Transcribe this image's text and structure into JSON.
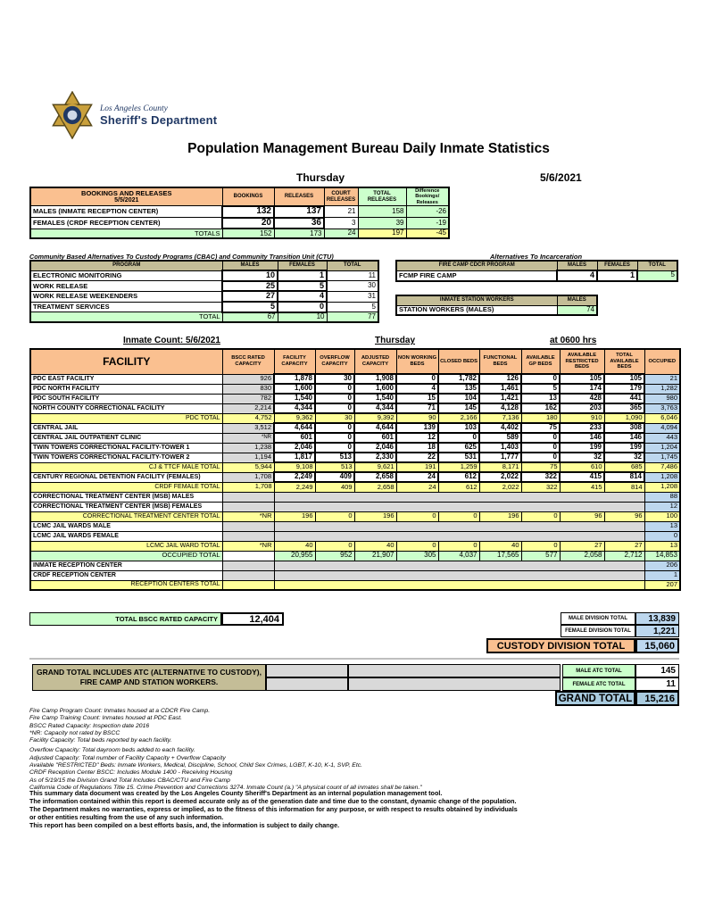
{
  "page": {
    "logo_county": "Los Angeles County",
    "logo_dept": "Sheriff's Department",
    "title": "Population Management Bureau Daily Inmate Statistics",
    "day": "Thursday",
    "date": "5/6/2021"
  },
  "colors": {
    "header_orange": "#FAC090",
    "light_green": "#CCFFCC",
    "total_yellow": "#FFFF99",
    "occupied_blue": "#BDD7EE",
    "tan": "#C4BD97",
    "gray": "#D9D9D9",
    "grand_blue": "#A9CBDF"
  },
  "bookings": {
    "header": {
      "title": "BOOKINGS AND RELEASES",
      "date": "5/5/2021",
      "cols": [
        "BOOKINGS",
        "RELEASES",
        "COURT RELEASES",
        "TOTAL RELEASES",
        "Difference Bookings/ Releases"
      ]
    },
    "rows": [
      {
        "label": "MALES (INMATE RECEPTION CENTER)",
        "values": [
          "132",
          "137",
          "21",
          "158",
          "-26"
        ]
      },
      {
        "label": "FEMALES (CRDF RECEPTION CENTER)",
        "values": [
          "20",
          "36",
          "3",
          "39",
          "-19"
        ]
      }
    ],
    "totals": {
      "label": "TOTALS",
      "values": [
        "152",
        "173",
        "24",
        "197",
        "-45"
      ]
    }
  },
  "cbac": {
    "title": "Community Based Alternatives To Custody Programs (CBAC) and Community Transition Unit (CTU)",
    "cols": [
      "PROGRAM",
      "MALES",
      "FEMALES",
      "TOTAL"
    ],
    "rows": [
      {
        "label": "ELECTRONIC MONITORING",
        "values": [
          "10",
          "1",
          "11"
        ]
      },
      {
        "label": "WORK RELEASE",
        "values": [
          "25",
          "5",
          "30"
        ]
      },
      {
        "label": "WORK RELEASE WEEKENDERS",
        "values": [
          "27",
          "4",
          "31"
        ]
      },
      {
        "label": "TREATMENT SERVICES",
        "values": [
          "5",
          "0",
          "5"
        ]
      }
    ],
    "totals": {
      "label": "TOTAL",
      "values": [
        "67",
        "10",
        "77"
      ]
    }
  },
  "ati": {
    "title": "Alternatives To Incarceration",
    "fire_camp": {
      "cols": [
        "FIRE CAMP CDCR PROGRAM",
        "MALES",
        "FEMALES",
        "TOTAL"
      ],
      "row": {
        "label": "FCMP FIRE CAMP",
        "values": [
          "4",
          "1",
          "5"
        ]
      }
    },
    "station_workers": {
      "cols": [
        "INMATE STATION WORKERS",
        "MALES"
      ],
      "row": {
        "label": "STATION WORKERS (MALES)",
        "value": "74"
      }
    }
  },
  "inmate_count": {
    "label": "Inmate Count: 5/6/2021",
    "day": "Thursday",
    "time": "at 0600 hrs"
  },
  "facility_table": {
    "header": [
      "FACILITY",
      "BSCC RATED CAPACITY",
      "FACILITY CAPACITY",
      "OVERFLOW CAPACITY",
      "ADJUSTED CAPACITY",
      "NON WORKING BEDS",
      "CLOSED BEDS",
      "FUNCTIONAL BEDS",
      "AVAILABLE GP BEDS",
      "AVAILABLE RESTRICTED BEDS",
      "TOTAL AVAILABLE BEDS",
      "OCCUPIED"
    ],
    "rows": [
      {
        "type": "facility",
        "label": "PDC EAST FACILITY",
        "bscc": "926",
        "vals": [
          "1,878",
          "30",
          "1,908",
          "0",
          "1,782",
          "126",
          "0",
          "105",
          "105"
        ],
        "occ": "21"
      },
      {
        "type": "facility",
        "label": "PDC NORTH FACILITY",
        "bscc": "830",
        "vals": [
          "1,600",
          "0",
          "1,600",
          "4",
          "135",
          "1,461",
          "5",
          "174",
          "179"
        ],
        "occ": "1,282"
      },
      {
        "type": "facility",
        "label": "PDC SOUTH FACILITY",
        "bscc": "782",
        "vals": [
          "1,540",
          "0",
          "1,540",
          "15",
          "104",
          "1,421",
          "13",
          "428",
          "441"
        ],
        "occ": "980"
      },
      {
        "type": "facility",
        "label": "NORTH COUNTY CORRECTIONAL FACILITY",
        "bscc": "2,214",
        "vals": [
          "4,344",
          "0",
          "4,344",
          "71",
          "145",
          "4,128",
          "162",
          "203",
          "365"
        ],
        "occ": "3,763"
      },
      {
        "type": "total",
        "label": "PDC TOTAL",
        "bscc": "4,752",
        "vals": [
          "9,362",
          "30",
          "9,392",
          "90",
          "2,166",
          "7,136",
          "180",
          "910",
          "1,090"
        ],
        "occ": "6,046"
      },
      {
        "type": "facility",
        "label": "CENTRAL JAIL",
        "bscc": "3,512",
        "vals": [
          "4,644",
          "0",
          "4,644",
          "139",
          "103",
          "4,402",
          "75",
          "233",
          "308"
        ],
        "occ": "4,094"
      },
      {
        "type": "facility",
        "label": "CENTRAL JAIL OUTPATIENT CLINIC",
        "bscc": "*NR",
        "vals": [
          "601",
          "0",
          "601",
          "12",
          "0",
          "589",
          "0",
          "146",
          "146"
        ],
        "occ": "443"
      },
      {
        "type": "facility",
        "label": "TWIN TOWERS CORRECTIONAL FACILITY-TOWER 1",
        "bscc": "1,238",
        "vals": [
          "2,046",
          "0",
          "2,046",
          "18",
          "625",
          "1,403",
          "0",
          "199",
          "199"
        ],
        "occ": "1,204"
      },
      {
        "type": "facility",
        "label": "TWIN TOWERS CORRECTIONAL FACILITY-TOWER 2",
        "bscc": "1,194",
        "vals": [
          "1,817",
          "513",
          "2,330",
          "22",
          "531",
          "1,777",
          "0",
          "32",
          "32"
        ],
        "occ": "1,745"
      },
      {
        "type": "total",
        "label": "CJ & TTCF MALE TOTAL",
        "bscc": "5,944",
        "vals": [
          "9,108",
          "513",
          "9,621",
          "191",
          "1,259",
          "8,171",
          "75",
          "610",
          "685"
        ],
        "occ": "7,486"
      },
      {
        "type": "facility",
        "label": "CENTURY REGIONAL DETENTION FACILITY (FEMALES)",
        "bscc": "1,708",
        "vals": [
          "2,249",
          "409",
          "2,658",
          "24",
          "612",
          "2,022",
          "322",
          "415",
          "814"
        ],
        "occ": "1,208"
      },
      {
        "type": "total",
        "label": "CRDF FEMALE TOTAL",
        "bscc": "1,708",
        "vals": [
          "2,249",
          "409",
          "2,658",
          "24",
          "612",
          "2,022",
          "322",
          "415",
          "814"
        ],
        "occ": "1,208"
      },
      {
        "type": "span",
        "label": "CORRECTIONAL TREATMENT CENTER (MSB) MALES",
        "bscc": "",
        "occ": "88"
      },
      {
        "type": "span",
        "label": "CORRECTIONAL TREATMENT CENTER (MSB) FEMALES",
        "bscc": "",
        "occ": "12"
      },
      {
        "type": "total",
        "label": "CORRECTIONAL TREATMENT CENTER TOTAL",
        "bscc": "*NR",
        "vals": [
          "196",
          "0",
          "196",
          "0",
          "0",
          "196",
          "0",
          "96",
          "96"
        ],
        "occ": "100"
      },
      {
        "type": "span",
        "label": "LCMC JAIL WARDS MALE",
        "bscc": "",
        "occ": "13"
      },
      {
        "type": "span",
        "label": "LCMC JAIL WARDS FEMALE",
        "bscc": "",
        "occ": "0"
      },
      {
        "type": "total",
        "label": "LCMC JAIL WARD TOTAL",
        "bscc": "*NR",
        "vals": [
          "40",
          "0",
          "40",
          "0",
          "0",
          "40",
          "0",
          "27",
          "27"
        ],
        "occ": "13"
      },
      {
        "type": "occtotal",
        "label": "OCCUPIED TOTAL",
        "bscc": "",
        "vals": [
          "20,955",
          "952",
          "21,907",
          "305",
          "4,037",
          "17,565",
          "577",
          "2,058",
          "2,712"
        ],
        "occ": "14,853"
      },
      {
        "type": "span",
        "label": "INMATE RECEPTION CENTER",
        "bscc": "",
        "occ": "206"
      },
      {
        "type": "span",
        "label": "CRDF RECEPTION CENTER",
        "bscc": "",
        "occ": "1"
      },
      {
        "type": "spantotal",
        "label": "RECEPTION CENTERS TOTAL",
        "bscc": "",
        "occ": "207"
      }
    ]
  },
  "bottom": {
    "total_bscc": {
      "label": "TOTAL BSCC RATED CAPACITY",
      "value": "12,404"
    },
    "male_division": {
      "label": "MALE DIVISION TOTAL",
      "value": "13,839"
    },
    "female_division": {
      "label": "FEMALE DIVISION TOTAL",
      "value": "1,221"
    },
    "custody_division": {
      "label": "CUSTODY DIVISION TOTAL",
      "value": "15,060"
    },
    "grand_note": "GRAND TOTAL INCLUDES ATC (ALTERNATIVE TO CUSTODY), FIRE CAMP AND STATION WORKERS.",
    "male_atc": {
      "label": "MALE ATC TOTAL",
      "value": "145"
    },
    "female_atc": {
      "label": "FEMALE ATC TOTAL",
      "value": "11"
    },
    "grand_total": {
      "label": "GRAND TOTAL",
      "value": "15,216"
    }
  },
  "footnotes": [
    "Fire Camp Program Count: Inmates housed at a CDCR Fire Camp.",
    "Fire Camp Training Count: Inmates housed at PDC East.",
    "BSCC Rated Capacity: Inspection date 2016",
    "*NR: Capacity not rated by BSCC",
    "Facility Capacity: Total beds reported by each facility.",
    "Overflow Capacity: Total dayroom beds added to each facility.",
    "Adjusted Capacity: Total number of Facility Capacity + Overflow Capacity",
    "Available \"RESTRICTED\" Beds: Inmate Workers, Medical, Discipline, School, Child Sex Crimes, LGBT, K-10, K-1, SVP, Etc.",
    "CRDF Reception Center BSCC: Includes Module 1400 - Receiving Housing",
    "As of 5/19/15 the Division Grand Total Includes CBAC/CTU and Fire Camp",
    "California Code of Regulations Title 15. Crime Prevention and Corrections 3274. Inmate Count (a.) \"A physical count of all inmates shall be taken.\""
  ],
  "disclaimer": [
    "This summary data document was created by the Los Angeles County Sheriff's Department as an internal population management tool.",
    "The information contained within this report is deemed accurate only as of the generation date and time due to the constant, dynamic change of the population.",
    "The Department makes no warranties, express or implied, as to the fitness of this information for any purpose, or with respect to results obtained by individuals",
    "or other entities resulting from the use of any such information.",
    "This report has been compiled on a best efforts basis, and, the information is subject to daily change."
  ]
}
